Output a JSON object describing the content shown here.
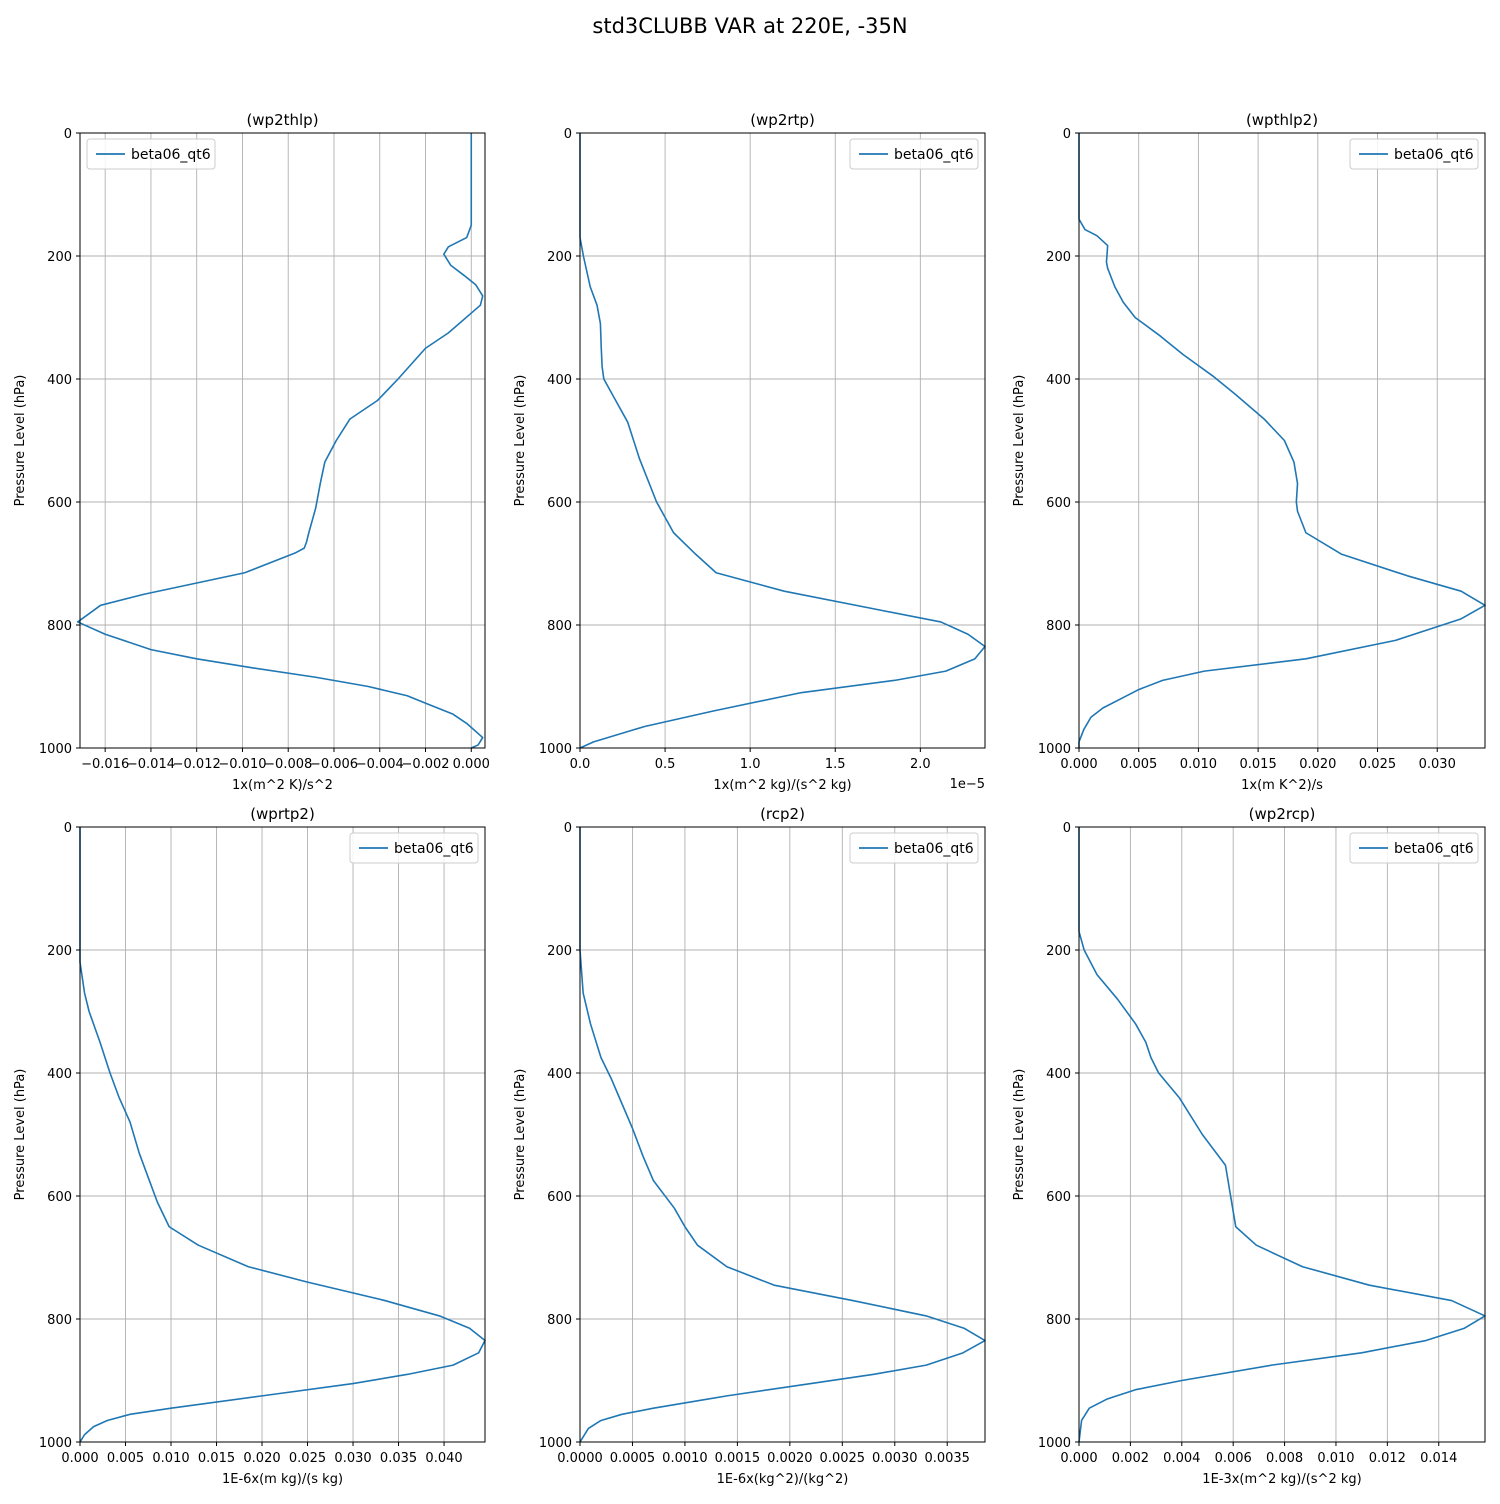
{
  "figure": {
    "title": "std3CLUBB VAR at 220E, -35N"
  },
  "style": {
    "line_color": "#1f77b4",
    "grid_color": "#b0b0b0",
    "axis_color": "#000000"
  },
  "chart_data": [
    {
      "type": "line",
      "title": "(wp2thlp)",
      "xlabel": "1x(m^2 K)/s^2",
      "ylabel": "Pressure Level (hPa)",
      "xlim": [
        -0.0171,
        0.0006
      ],
      "ylim": [
        1000,
        0
      ],
      "xticks": [
        -0.016,
        -0.014,
        -0.012,
        -0.01,
        -0.008,
        -0.006,
        -0.004,
        -0.002,
        0.0
      ],
      "xtick_labels": [
        "−0.016",
        "−0.014",
        "−0.012",
        "−0.010",
        "−0.008",
        "−0.006",
        "−0.004",
        "−0.002",
        "0.000"
      ],
      "yticks": [
        0,
        200,
        400,
        600,
        800,
        1000
      ],
      "ytick_labels": [
        "0",
        "200",
        "400",
        "600",
        "800",
        "1000"
      ],
      "offset_label": "",
      "legend": {
        "entries": [
          "beta06_qt6"
        ],
        "location": "upper-left"
      },
      "grid": true,
      "series": [
        {
          "name": "beta06_qt6",
          "x": [
            0.0,
            0.0,
            0.0,
            -0.0002,
            -0.001,
            -0.0012,
            -0.0009,
            -0.0003,
            0.0002,
            0.0005,
            0.0004,
            -0.001,
            -0.002,
            -0.0032,
            -0.0041,
            -0.0053,
            -0.0059,
            -0.0064,
            -0.0066,
            -0.0068,
            -0.0071,
            -0.0072,
            -0.0073,
            -0.0077,
            -0.0099,
            -0.0143,
            -0.0162,
            -0.0172,
            -0.016,
            -0.014,
            -0.012,
            -0.0095,
            -0.0068,
            -0.0045,
            -0.0028,
            -0.0018,
            -0.0008,
            -0.0002,
            0.0005,
            0.0003,
            0.0
          ],
          "y": [
            0,
            100,
            150,
            170,
            185,
            197,
            215,
            232,
            247,
            265,
            280,
            325,
            350,
            400,
            435,
            465,
            500,
            535,
            570,
            610,
            650,
            665,
            675,
            683,
            715,
            750,
            768,
            795,
            815,
            840,
            855,
            870,
            885,
            900,
            915,
            930,
            945,
            960,
            983,
            995,
            1000
          ]
        }
      ]
    },
    {
      "type": "line",
      "title": "(wp2rtp)",
      "xlabel": "1x(m^2 kg)/(s^2 kg)",
      "ylabel": "Pressure Level (hPa)",
      "xlim": [
        0.0,
        2.38
      ],
      "ylim": [
        1000,
        0
      ],
      "xticks": [
        0.0,
        0.5,
        1.0,
        1.5,
        2.0
      ],
      "xtick_labels": [
        "0.0",
        "0.5",
        "1.0",
        "1.5",
        "2.0"
      ],
      "yticks": [
        0,
        200,
        400,
        600,
        800,
        1000
      ],
      "ytick_labels": [
        "0",
        "200",
        "400",
        "600",
        "800",
        "1000"
      ],
      "offset_label": "1e−5",
      "legend": {
        "entries": [
          "beta06_qt6"
        ],
        "location": "upper-right"
      },
      "grid": true,
      "series": [
        {
          "name": "beta06_qt6",
          "x": [
            0.0,
            0.0,
            0.02,
            0.06,
            0.1,
            0.12,
            0.125,
            0.13,
            0.14,
            0.2,
            0.28,
            0.35,
            0.45,
            0.55,
            0.68,
            0.8,
            1.2,
            1.75,
            2.12,
            2.28,
            2.38,
            2.32,
            2.15,
            1.85,
            1.3,
            0.78,
            0.38,
            0.08,
            0.0
          ],
          "y": [
            0,
            170,
            200,
            250,
            280,
            310,
            350,
            380,
            400,
            430,
            470,
            530,
            600,
            650,
            685,
            715,
            745,
            775,
            795,
            815,
            835,
            855,
            875,
            890,
            910,
            940,
            965,
            990,
            1000
          ]
        }
      ]
    },
    {
      "type": "line",
      "title": "(wpthlp2)",
      "xlabel": "1x(m K^2)/s",
      "ylabel": "Pressure Level (hPa)",
      "xlim": [
        0.0,
        0.034
      ],
      "ylim": [
        1000,
        0
      ],
      "xticks": [
        0.0,
        0.005,
        0.01,
        0.015,
        0.02,
        0.025,
        0.03
      ],
      "xtick_labels": [
        "0.000",
        "0.005",
        "0.010",
        "0.015",
        "0.020",
        "0.025",
        "0.030"
      ],
      "yticks": [
        0,
        200,
        400,
        600,
        800,
        1000
      ],
      "ytick_labels": [
        "0",
        "200",
        "400",
        "600",
        "800",
        "1000"
      ],
      "offset_label": "",
      "legend": {
        "entries": [
          "beta06_qt6"
        ],
        "location": "upper-right"
      },
      "grid": true,
      "series": [
        {
          "name": "beta06_qt6",
          "x": [
            0.0,
            0.0,
            0.0005,
            0.0015,
            0.0024,
            0.0023,
            0.0024,
            0.003,
            0.0037,
            0.0047,
            0.0068,
            0.0087,
            0.0112,
            0.0131,
            0.0155,
            0.0172,
            0.018,
            0.0183,
            0.0182,
            0.0183,
            0.019,
            0.022,
            0.0275,
            0.032,
            0.034,
            0.032,
            0.0265,
            0.019,
            0.0105,
            0.007,
            0.005,
            0.0035,
            0.002,
            0.001,
            0.0004,
            0.0,
            0.0
          ],
          "y": [
            0,
            140,
            157,
            167,
            183,
            210,
            220,
            250,
            275,
            300,
            330,
            360,
            395,
            425,
            465,
            500,
            535,
            570,
            600,
            615,
            650,
            685,
            720,
            745,
            768,
            790,
            825,
            855,
            875,
            890,
            905,
            920,
            935,
            950,
            970,
            990,
            1000
          ]
        }
      ]
    },
    {
      "type": "line",
      "title": "(wprtp2)",
      "xlabel": "1E-6x(m kg)/(s kg)",
      "ylabel": "Pressure Level (hPa)",
      "xlim": [
        0.0,
        0.0445
      ],
      "ylim": [
        1000,
        0
      ],
      "xticks": [
        0.0,
        0.005,
        0.01,
        0.015,
        0.02,
        0.025,
        0.03,
        0.035,
        0.04
      ],
      "xtick_labels": [
        "0.000",
        "0.005",
        "0.010",
        "0.015",
        "0.020",
        "0.025",
        "0.030",
        "0.035",
        "0.040"
      ],
      "yticks": [
        0,
        200,
        400,
        600,
        800,
        1000
      ],
      "ytick_labels": [
        "0",
        "200",
        "400",
        "600",
        "800",
        "1000"
      ],
      "offset_label": "",
      "legend": {
        "entries": [
          "beta06_qt6"
        ],
        "location": "upper-right"
      },
      "grid": true,
      "series": [
        {
          "name": "beta06_qt6",
          "x": [
            0.0,
            0.0,
            0.0005,
            0.001,
            0.0022,
            0.0033,
            0.0043,
            0.0055,
            0.0065,
            0.0075,
            0.0085,
            0.0098,
            0.013,
            0.0185,
            0.025,
            0.0335,
            0.0395,
            0.0428,
            0.0445,
            0.0438,
            0.041,
            0.036,
            0.03,
            0.02,
            0.01,
            0.0055,
            0.003,
            0.0015,
            0.0005,
            0.0
          ],
          "y": [
            0,
            220,
            270,
            300,
            350,
            400,
            440,
            480,
            530,
            570,
            610,
            650,
            680,
            715,
            740,
            770,
            795,
            815,
            835,
            855,
            875,
            890,
            905,
            925,
            945,
            955,
            965,
            975,
            988,
            1000
          ]
        }
      ]
    },
    {
      "type": "line",
      "title": "(rcp2)",
      "xlabel": "1E-6x(kg^2)/(kg^2)",
      "ylabel": "Pressure Level (hPa)",
      "xlim": [
        0.0,
        0.00386
      ],
      "ylim": [
        1000,
        0
      ],
      "xticks": [
        0.0,
        0.0005,
        0.001,
        0.0015,
        0.002,
        0.0025,
        0.003,
        0.0035
      ],
      "xtick_labels": [
        "0.0000",
        "0.0005",
        "0.0010",
        "0.0015",
        "0.0020",
        "0.0025",
        "0.0030",
        "0.0035"
      ],
      "yticks": [
        0,
        200,
        400,
        600,
        800,
        1000
      ],
      "ytick_labels": [
        "0",
        "200",
        "400",
        "600",
        "800",
        "1000"
      ],
      "offset_label": "",
      "legend": {
        "entries": [
          "beta06_qt6"
        ],
        "location": "upper-right"
      },
      "grid": true,
      "series": [
        {
          "name": "beta06_qt6",
          "x": [
            0.0,
            0.0,
            3e-05,
            0.0001,
            0.0002,
            0.0003,
            0.0004,
            0.0005,
            0.0006,
            0.0007,
            0.0009,
            0.001,
            0.00112,
            0.0014,
            0.00185,
            0.0026,
            0.0033,
            0.00366,
            0.00386,
            0.00365,
            0.0033,
            0.0028,
            0.0022,
            0.0014,
            0.0007,
            0.0004,
            0.0002,
            8e-05,
            0.0
          ],
          "y": [
            0,
            200,
            270,
            320,
            375,
            410,
            450,
            490,
            535,
            575,
            620,
            650,
            680,
            715,
            745,
            770,
            795,
            815,
            835,
            855,
            875,
            890,
            905,
            925,
            945,
            955,
            965,
            978,
            1000
          ]
        }
      ]
    },
    {
      "type": "line",
      "title": "(wp2rcp)",
      "xlabel": "1E-3x(m^2 kg)/(s^2 kg)",
      "ylabel": "Pressure Level (hPa)",
      "xlim": [
        0.0,
        0.0158
      ],
      "ylim": [
        1000,
        0
      ],
      "xticks": [
        0.0,
        0.002,
        0.004,
        0.006,
        0.008,
        0.01,
        0.012,
        0.014
      ],
      "xtick_labels": [
        "0.000",
        "0.002",
        "0.004",
        "0.006",
        "0.008",
        "0.010",
        "0.012",
        "0.014"
      ],
      "yticks": [
        0,
        200,
        400,
        600,
        800,
        1000
      ],
      "ytick_labels": [
        "0",
        "200",
        "400",
        "600",
        "800",
        "1000"
      ],
      "offset_label": "",
      "legend": {
        "entries": [
          "beta06_qt6"
        ],
        "location": "upper-right"
      },
      "grid": true,
      "series": [
        {
          "name": "beta06_qt6",
          "x": [
            0.0,
            0.0,
            0.0002,
            0.0007,
            0.0015,
            0.0022,
            0.0026,
            0.0028,
            0.0031,
            0.0039,
            0.0048,
            0.0057,
            0.0061,
            0.0069,
            0.0087,
            0.0113,
            0.0145,
            0.0158,
            0.015,
            0.0135,
            0.011,
            0.0075,
            0.004,
            0.0022,
            0.0011,
            0.0004,
            0.0001,
            0.0
          ],
          "y": [
            0,
            170,
            200,
            240,
            280,
            320,
            350,
            375,
            400,
            440,
            500,
            550,
            650,
            680,
            715,
            745,
            770,
            795,
            815,
            835,
            855,
            875,
            900,
            915,
            930,
            945,
            965,
            1000
          ]
        }
      ]
    }
  ]
}
